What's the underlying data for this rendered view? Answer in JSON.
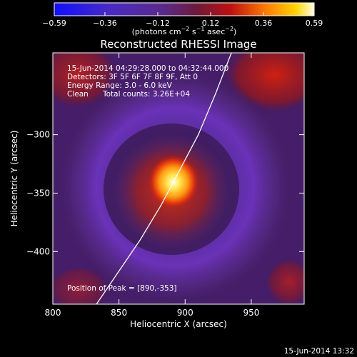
{
  "chart_data": {
    "type": "heatmap",
    "title": "Reconstructed RHESSI Image",
    "xlabel": "Heliocentric X (arcsec)",
    "ylabel": "Heliocentric Y (arcsec)",
    "xlim": [
      800,
      990
    ],
    "ylim": [
      -445,
      -230
    ],
    "x_ticks": [
      800,
      850,
      900,
      950
    ],
    "x_tick_labels": [
      "800",
      "850",
      "900",
      "950"
    ],
    "y_ticks": [
      -300,
      -350,
      -400
    ],
    "y_tick_labels": [
      "−300",
      "−350",
      "−400"
    ],
    "colorbar": {
      "range": [
        -0.59,
        0.59
      ],
      "ticks": [
        -0.59,
        -0.36,
        -0.12,
        0.12,
        0.36,
        0.59
      ],
      "tick_labels": [
        "−0.59",
        "−0.36",
        "−0.12",
        "0.12",
        "0.36",
        "0.59"
      ],
      "unit_text": "(photons cm",
      "unit_sup1": "−2",
      "unit_mid": " s",
      "unit_sup2": "−1",
      "unit_tail": " asec",
      "unit_sup3": "−2",
      "unit_close": ")"
    },
    "annotations": [
      "15-Jun-2014 04:29:28.000 to 04:32:44.000",
      "Detectors: 3F 5F 6F 7F 8F 9F, Att 0",
      "Energy Range: 3.0 - 6.0 keV",
      "Clean",
      "Total counts: 3.26E+04"
    ],
    "peak_label": "Position of Peak = [890,-353]",
    "peak": {
      "x": 890,
      "y": -353
    },
    "limb_curve": [
      [
        833,
        -445
      ],
      [
        848,
        -420
      ],
      [
        866,
        -390
      ],
      [
        882,
        -360
      ],
      [
        896,
        -330
      ],
      [
        910,
        -300
      ],
      [
        923,
        -265
      ],
      [
        935,
        -230
      ]
    ],
    "footer_date": "15-Jun-2014 13:32"
  }
}
